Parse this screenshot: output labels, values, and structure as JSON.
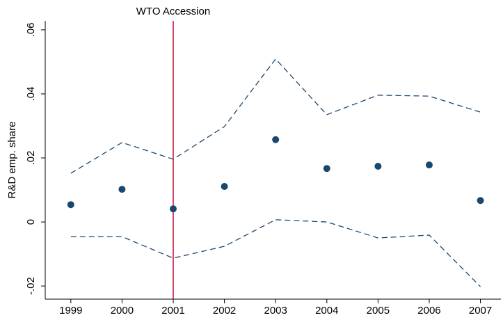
{
  "chart_data": {
    "type": "line",
    "y_label": "R&D emp. share",
    "x": [
      1999,
      2000,
      2001,
      2002,
      2003,
      2004,
      2005,
      2006,
      2007
    ],
    "xlim": [
      1998.5,
      2007.4
    ],
    "xticks": [
      1999,
      2000,
      2001,
      2002,
      2003,
      2004,
      2005,
      2006,
      2007
    ],
    "ylim": [
      -0.0241,
      0.0628
    ],
    "yticks": [
      {
        "value": 0.06,
        "label": ".06"
      },
      {
        "value": 0.04,
        "label": ".04"
      },
      {
        "value": 0.02,
        "label": ".02"
      },
      0,
      {
        "value": -0.02,
        "label": "-.02"
      }
    ],
    "grid": false,
    "series": [
      {
        "style": "markers",
        "color": "#1a476f",
        "values": [
          0.0054,
          0.0102,
          0.0041,
          0.0111,
          0.0257,
          0.0167,
          0.0174,
          0.0178,
          0.0067
        ]
      },
      {
        "style": "dashed",
        "color": "#1a476f",
        "values": [
          0.0152,
          0.0248,
          0.0196,
          0.0298,
          0.0509,
          0.0335,
          0.0396,
          0.0393,
          0.0343
        ]
      },
      {
        "style": "dashed",
        "color": "#1a476f",
        "values": [
          -0.0046,
          -0.0046,
          -0.0113,
          -0.0076,
          0.0007,
          0.0,
          -0.005,
          -0.0041,
          -0.0202
        ]
      }
    ],
    "vline": {
      "x": 2001,
      "label": "WTO Accession",
      "color": "#c10534"
    }
  }
}
